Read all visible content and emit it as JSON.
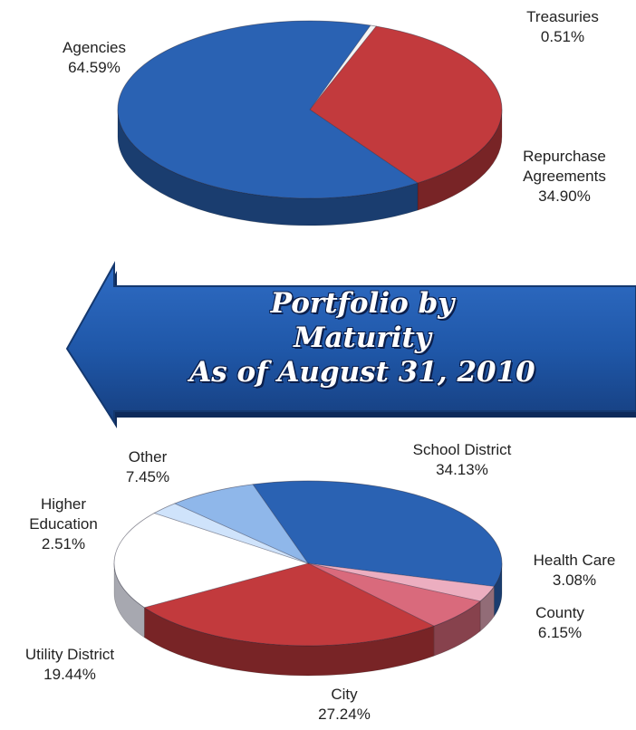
{
  "banner": {
    "title_lines": [
      "Portfolio by",
      "Maturity",
      "As of August 31, 2010"
    ],
    "color": "#1f57a8"
  },
  "chart_data": [
    {
      "type": "pie",
      "title": "",
      "slices": [
        {
          "label": [
            "Agencies"
          ],
          "value": 64.59,
          "value_text": "64.59%",
          "color": "#2a62b3"
        },
        {
          "label": [
            "Treasuries"
          ],
          "value": 0.51,
          "value_text": "0.51%",
          "color": "#f4f4f4"
        },
        {
          "label": [
            "Repurchase",
            "Agreements"
          ],
          "value": 34.9,
          "value_text": "34.90%",
          "color": "#c23a3d"
        }
      ]
    },
    {
      "type": "pie",
      "title": "",
      "slices": [
        {
          "label": [
            "School District"
          ],
          "value": 34.13,
          "value_text": "34.13%",
          "color": "#2a62b3"
        },
        {
          "label": [
            "Health Care"
          ],
          "value": 3.08,
          "value_text": "3.08%",
          "color": "#ecaec0"
        },
        {
          "label": [
            "County"
          ],
          "value": 6.15,
          "value_text": "6.15%",
          "color": "#d96a7c"
        },
        {
          "label": [
            "City"
          ],
          "value": 27.24,
          "value_text": "27.24%",
          "color": "#c23a3d"
        },
        {
          "label": [
            "Utility District"
          ],
          "value": 19.44,
          "value_text": "19.44%",
          "color": "#ffffff"
        },
        {
          "label": [
            "Higher",
            "Education"
          ],
          "value": 2.51,
          "value_text": "2.51%",
          "color": "#cfe3fb"
        },
        {
          "label": [
            "Other"
          ],
          "value": 7.45,
          "value_text": "7.45%",
          "color": "#8fb7ea"
        }
      ]
    }
  ]
}
